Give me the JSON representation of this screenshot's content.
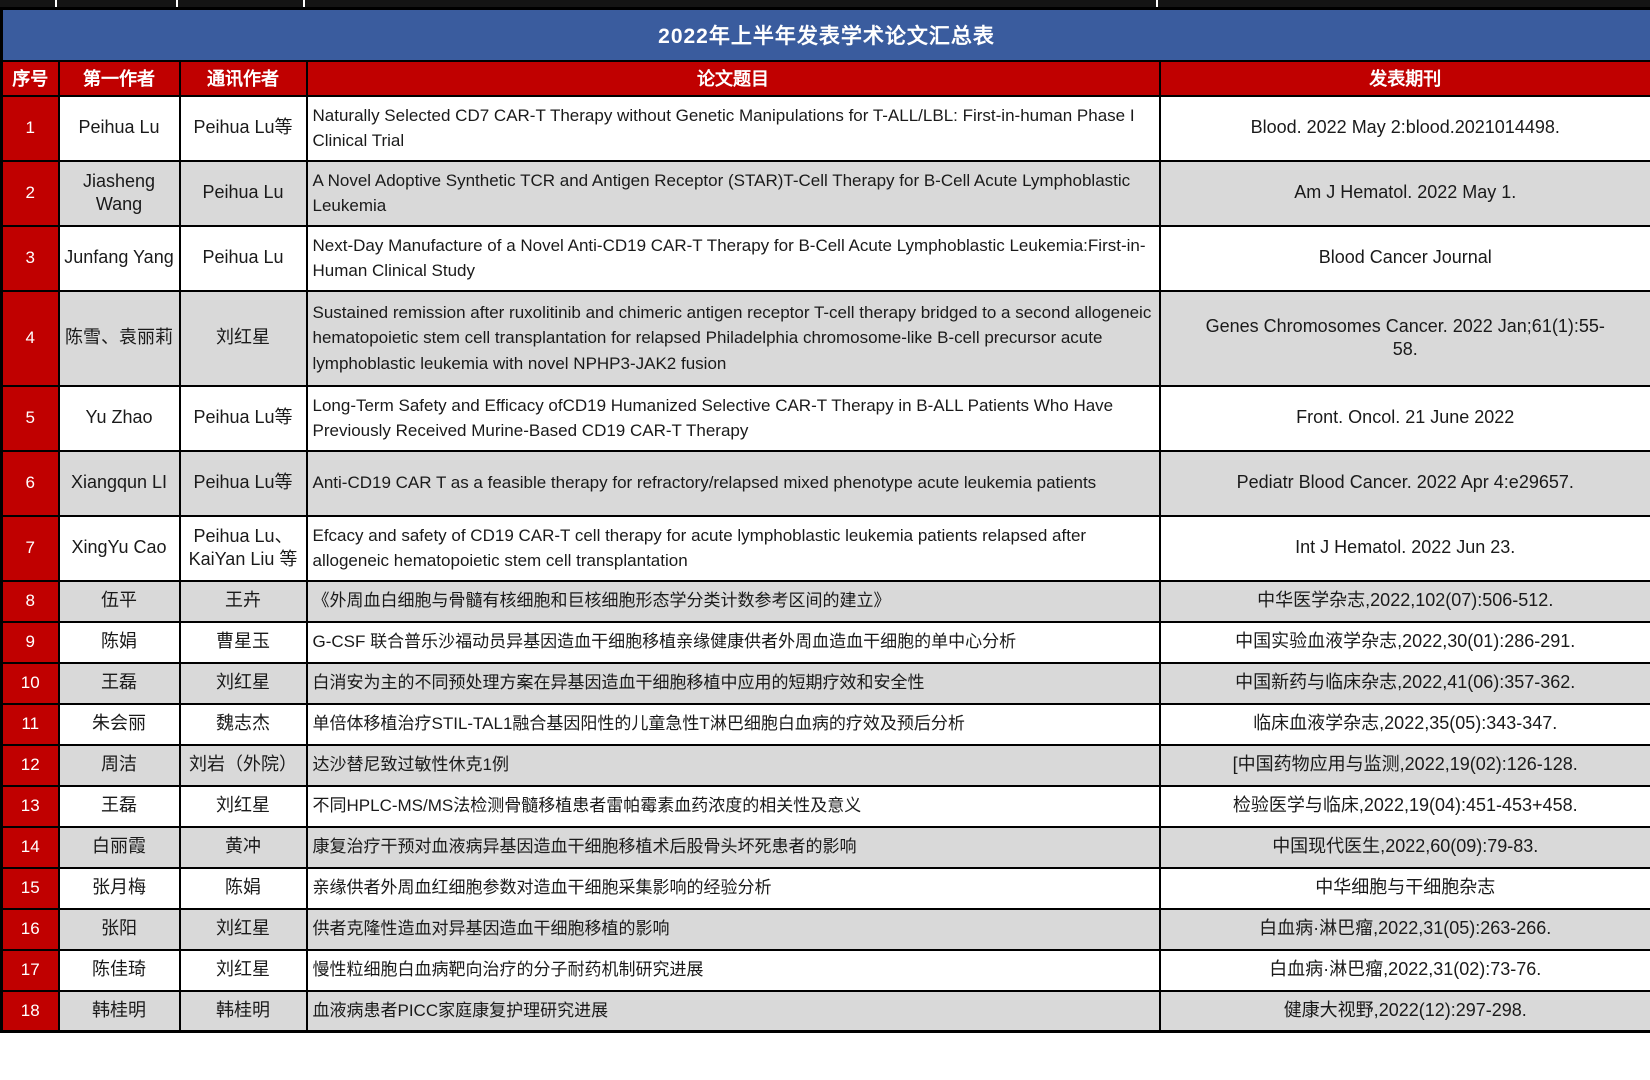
{
  "title": "2022年上半年发表学术论文汇总表",
  "columns": [
    {
      "key": "seq",
      "label": "序号"
    },
    {
      "key": "first_author",
      "label": "第一作者"
    },
    {
      "key": "corresponding_author",
      "label": "通讯作者"
    },
    {
      "key": "paper_title",
      "label": "论文题目"
    },
    {
      "key": "journal",
      "label": "发表期刊"
    }
  ],
  "colors": {
    "title_bar_blue": "#3A5C9E",
    "header_red": "#C00000",
    "alt_row_gray": "#D9D9D9",
    "border_black": "#000000"
  },
  "rows": [
    {
      "no": "1",
      "first_author": "Peihua Lu",
      "corresponding_author": "Peihua Lu等",
      "title": "Naturally Selected CD7 CAR-T Therapy without Genetic Manipulations for T-ALL/LBL: First-in-human Phase I Clinical Trial",
      "journal": "Blood. 2022 May 2:blood.2021014498."
    },
    {
      "no": "2",
      "first_author": "Jiasheng Wang",
      "corresponding_author": "Peihua Lu",
      "title": "A Novel Adoptive Synthetic TCR and Antigen Receptor (STAR)T-Cell Therapy for B-Cell Acute Lymphoblastic Leukemia",
      "journal": "Am J Hematol. 2022 May 1."
    },
    {
      "no": "3",
      "first_author": "Junfang Yang",
      "corresponding_author": "Peihua Lu",
      "title": "Next-Day Manufacture of a Novel Anti-CD19 CAR-T Therapy for B-Cell Acute Lymphoblastic Leukemia:First-in-Human Clinical Study",
      "journal": "Blood Cancer Journal"
    },
    {
      "no": "4",
      "first_author": "陈雪、袁丽莉",
      "corresponding_author": "刘红星",
      "title": "Sustained remission after ruxolitinib and chimeric antigen receptor T-cell therapy bridged to a second allogeneic hematopoietic stem cell transplantation for relapsed Philadelphia chromosome-like B-cell precursor acute lymphoblastic leukemia with novel NPHP3-JAK2 fusion",
      "journal": "Genes Chromosomes Cancer. 2022 Jan;61(1):55-58."
    },
    {
      "no": "5",
      "first_author": "Yu Zhao",
      "corresponding_author": "Peihua Lu等",
      "title": "Long-Term Safety and Efficacy ofCD19 Humanized Selective CAR-T Therapy in B-ALL Patients Who Have Previously Received Murine-Based CD19 CAR-T Therapy",
      "journal": "Front. Oncol. 21 June 2022"
    },
    {
      "no": "6",
      "first_author": "Xiangqun LI",
      "corresponding_author": "Peihua Lu等",
      "title": "Anti-CD19 CAR T as a feasible therapy for refractory/relapsed mixed phenotype acute leukemia patients",
      "journal": "Pediatr Blood Cancer. 2022 Apr 4:e29657."
    },
    {
      "no": "7",
      "first_author": "XingYu Cao",
      "corresponding_author": "Peihua Lu、KaiYan Liu 等",
      "title": "Efcacy and safety of CD19 CAR-T cell therapy for acute lymphoblastic leukemia patients relapsed after allogeneic hematopoietic stem cell transplantation",
      "journal": "Int J Hematol. 2022 Jun 23."
    },
    {
      "no": "8",
      "first_author": "伍平",
      "corresponding_author": "王卉",
      "title": "《外周血白细胞与骨髓有核细胞和巨核细胞形态学分类计数参考区间的建立》",
      "journal": "中华医学杂志,2022,102(07):506-512."
    },
    {
      "no": "9",
      "first_author": "陈娟",
      "corresponding_author": "曹星玉",
      "title": "G-CSF 联合普乐沙福动员异基因造血干细胞移植亲缘健康供者外周血造血干细胞的单中心分析",
      "journal": "中国实验血液学杂志,2022,30(01):286-291."
    },
    {
      "no": "10",
      "first_author": "王磊",
      "corresponding_author": "刘红星",
      "title": "白消安为主的不同预处理方案在异基因造血干细胞移植中应用的短期疗效和安全性",
      "journal": "中国新药与临床杂志,2022,41(06):357-362."
    },
    {
      "no": "11",
      "first_author": "朱会丽",
      "corresponding_author": "魏志杰",
      "title": "单倍体移植治疗STIL-TAL1融合基因阳性的儿童急性T淋巴细胞白血病的疗效及预后分析",
      "journal": "临床血液学杂志,2022,35(05):343-347."
    },
    {
      "no": "12",
      "first_author": "周洁",
      "corresponding_author": "刘岩（外院）",
      "title": "达沙替尼致过敏性休克1例",
      "journal": "[中国药物应用与监测,2022,19(02):126-128."
    },
    {
      "no": "13",
      "first_author": "王磊",
      "corresponding_author": "刘红星",
      "title": "不同HPLC-MS/MS法检测骨髓移植患者雷帕霉素血药浓度的相关性及意义",
      "journal": "检验医学与临床,2022,19(04):451-453+458."
    },
    {
      "no": "14",
      "first_author": "白丽霞",
      "corresponding_author": "黄冲",
      "title": "康复治疗干预对血液病异基因造血干细胞移植术后股骨头坏死患者的影响",
      "journal": "中国现代医生,2022,60(09):79-83."
    },
    {
      "no": "15",
      "first_author": "张月梅",
      "corresponding_author": "陈娟",
      "title": "亲缘供者外周血红细胞参数对造血干细胞采集影响的经验分析",
      "journal": "中华细胞与干细胞杂志"
    },
    {
      "no": "16",
      "first_author": "张阳",
      "corresponding_author": "刘红星",
      "title": "供者克隆性造血对异基因造血干细胞移植的影响",
      "journal": "白血病·淋巴瘤,2022,31(05):263-266."
    },
    {
      "no": "17",
      "first_author": "陈佳琦",
      "corresponding_author": "刘红星",
      "title": "慢性粒细胞白血病靶向治疗的分子耐药机制研究进展",
      "journal": "白血病·淋巴瘤,2022,31(02):73-76."
    },
    {
      "no": "18",
      "first_author": "韩桂明",
      "corresponding_author": "韩桂明",
      "title": "血液病患者PICC家庭康复护理研究进展",
      "journal": "健康大视野,2022(12):297-298."
    }
  ]
}
